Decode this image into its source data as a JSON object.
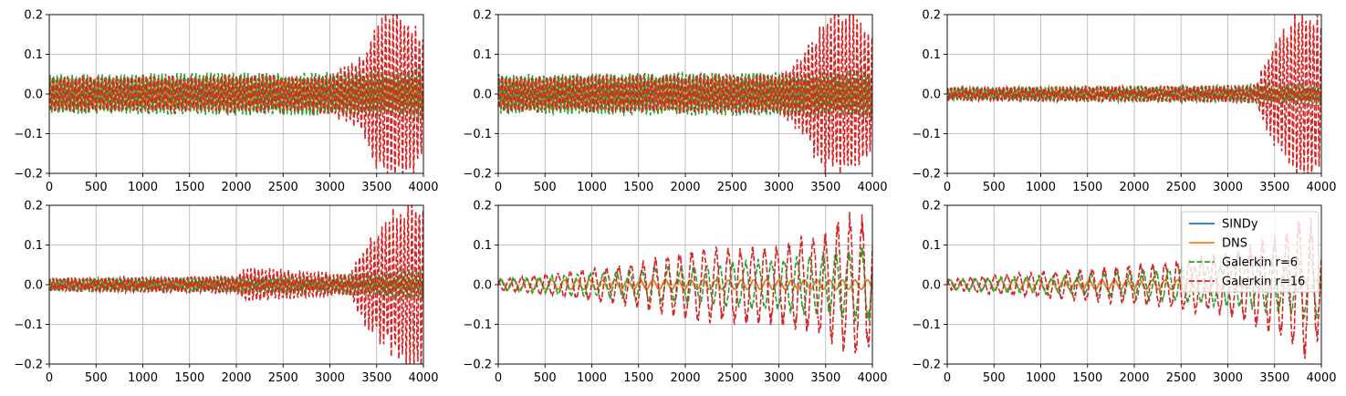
{
  "colors": {
    "SINDy": "#1f77b4",
    "DNS": "#ff7f0e",
    "Galerkin r=6": "#2ca02c",
    "Galerkin r=16": "#d62728",
    "grid": "#b0b0b0"
  },
  "legend": {
    "placement": "upper-right of bottom-right panel",
    "entries": [
      {
        "label": "SINDy",
        "style": "solid"
      },
      {
        "label": "DNS",
        "style": "solid"
      },
      {
        "label": "Galerkin r=6",
        "style": "dashed"
      },
      {
        "label": "Galerkin r=16",
        "style": "dashed"
      }
    ]
  },
  "chart_data": [
    {
      "type": "line",
      "panel": "top-left",
      "grid": true,
      "xlim": [
        0,
        4000
      ],
      "ylim": [
        -0.2,
        0.2
      ],
      "xticks": [
        "0",
        "500",
        "1000",
        "1500",
        "2000",
        "2500",
        "3000",
        "3500",
        "4000"
      ],
      "yticks": [
        "−0.2",
        "−0.1",
        "0.0",
        "0.1",
        "0.2"
      ],
      "series": [
        {
          "name": "SINDy",
          "style": "solid",
          "period": 40,
          "amplitude": [
            [
              0,
              0.04
            ],
            [
              4000,
              0.04
            ]
          ]
        },
        {
          "name": "DNS",
          "style": "solid",
          "period": 40,
          "amplitude": [
            [
              0,
              0.04
            ],
            [
              4000,
              0.04
            ]
          ]
        },
        {
          "name": "Galerkin r=6",
          "style": "dashed",
          "period": 40,
          "amplitude": [
            [
              0,
              0.045
            ],
            [
              3000,
              0.05
            ],
            [
              4000,
              0.06
            ]
          ]
        },
        {
          "name": "Galerkin r=16",
          "style": "dashed",
          "period": 40,
          "amplitude": [
            [
              0,
              0.04
            ],
            [
              3000,
              0.045
            ],
            [
              3300,
              0.08
            ],
            [
              3500,
              0.17
            ],
            [
              3600,
              0.2
            ],
            [
              3800,
              0.2
            ],
            [
              4000,
              0.15
            ]
          ]
        }
      ]
    },
    {
      "type": "line",
      "panel": "top-middle",
      "grid": true,
      "xlim": [
        0,
        4000
      ],
      "ylim": [
        -0.2,
        0.2
      ],
      "xticks": [
        "0",
        "500",
        "1000",
        "1500",
        "2000",
        "2500",
        "3000",
        "3500",
        "4000"
      ],
      "yticks": [
        "−0.2",
        "−0.1",
        "0.0",
        "0.1",
        "0.2"
      ],
      "series": [
        {
          "name": "SINDy",
          "style": "solid",
          "period": 40,
          "amplitude": [
            [
              0,
              0.04
            ],
            [
              4000,
              0.04
            ]
          ]
        },
        {
          "name": "DNS",
          "style": "solid",
          "period": 40,
          "amplitude": [
            [
              0,
              0.04
            ],
            [
              4000,
              0.04
            ]
          ]
        },
        {
          "name": "Galerkin r=6",
          "style": "dashed",
          "period": 40,
          "amplitude": [
            [
              0,
              0.045
            ],
            [
              3000,
              0.05
            ],
            [
              4000,
              0.06
            ]
          ]
        },
        {
          "name": "Galerkin r=16",
          "style": "dashed",
          "period": 40,
          "amplitude": [
            [
              0,
              0.04
            ],
            [
              3000,
              0.045
            ],
            [
              3200,
              0.08
            ],
            [
              3500,
              0.18
            ],
            [
              3700,
              0.2
            ],
            [
              4000,
              0.15
            ]
          ]
        }
      ]
    },
    {
      "type": "line",
      "panel": "top-right",
      "grid": true,
      "xlim": [
        0,
        4000
      ],
      "ylim": [
        -0.2,
        0.2
      ],
      "xticks": [
        "0",
        "500",
        "1000",
        "1500",
        "2000",
        "2500",
        "3000",
        "3500",
        "4000"
      ],
      "yticks": [
        "−0.2",
        "−0.1",
        "0.0",
        "0.1",
        "0.2"
      ],
      "series": [
        {
          "name": "SINDy",
          "style": "solid",
          "period": 40,
          "amplitude": [
            [
              0,
              0.012
            ],
            [
              4000,
              0.012
            ]
          ]
        },
        {
          "name": "DNS",
          "style": "solid",
          "period": 40,
          "amplitude": [
            [
              0,
              0.012
            ],
            [
              4000,
              0.012
            ]
          ]
        },
        {
          "name": "Galerkin r=6",
          "style": "dashed",
          "period": 40,
          "amplitude": [
            [
              0,
              0.015
            ],
            [
              3000,
              0.02
            ],
            [
              4000,
              0.03
            ]
          ]
        },
        {
          "name": "Galerkin r=16",
          "style": "dashed",
          "period": 40,
          "amplitude": [
            [
              0,
              0.015
            ],
            [
              3300,
              0.02
            ],
            [
              3400,
              0.08
            ],
            [
              3600,
              0.15
            ],
            [
              3800,
              0.2
            ],
            [
              4000,
              0.18
            ]
          ]
        }
      ]
    },
    {
      "type": "line",
      "panel": "bottom-left",
      "grid": true,
      "xlim": [
        0,
        4000
      ],
      "ylim": [
        -0.2,
        0.2
      ],
      "xticks": [
        "0",
        "500",
        "1000",
        "1500",
        "2000",
        "2500",
        "3000",
        "3500",
        "4000"
      ],
      "yticks": [
        "−0.2",
        "−0.1",
        "0.0",
        "0.1",
        "0.2"
      ],
      "series": [
        {
          "name": "SINDy",
          "style": "solid",
          "period": 40,
          "amplitude": [
            [
              0,
              0.012
            ],
            [
              4000,
              0.012
            ]
          ]
        },
        {
          "name": "DNS",
          "style": "solid",
          "period": 40,
          "amplitude": [
            [
              0,
              0.012
            ],
            [
              4000,
              0.012
            ]
          ]
        },
        {
          "name": "Galerkin r=6",
          "style": "dashed",
          "period": 40,
          "amplitude": [
            [
              0,
              0.015
            ],
            [
              3000,
              0.02
            ],
            [
              4000,
              0.04
            ]
          ]
        },
        {
          "name": "Galerkin r=16",
          "style": "dashed",
          "period": 40,
          "amplitude": [
            [
              0,
              0.015
            ],
            [
              2000,
              0.02
            ],
            [
              2100,
              0.04
            ],
            [
              3200,
              0.025
            ],
            [
              3400,
              0.1
            ],
            [
              3700,
              0.17
            ],
            [
              3900,
              0.2
            ],
            [
              4000,
              0.2
            ]
          ]
        }
      ]
    },
    {
      "type": "line",
      "panel": "bottom-middle",
      "grid": true,
      "xlim": [
        0,
        4000
      ],
      "ylim": [
        -0.2,
        0.2
      ],
      "xticks": [
        "0",
        "500",
        "1000",
        "1500",
        "2000",
        "2500",
        "3000",
        "3500",
        "4000"
      ],
      "yticks": [
        "−0.2",
        "−0.1",
        "0.0",
        "0.1",
        "0.2"
      ],
      "series": [
        {
          "name": "SINDy",
          "style": "solid",
          "period": 135,
          "amplitude": [
            [
              0,
              0.012
            ],
            [
              4000,
              0.012
            ]
          ]
        },
        {
          "name": "DNS",
          "style": "solid",
          "period": 135,
          "amplitude": [
            [
              0,
              0.012
            ],
            [
              4000,
              0.012
            ]
          ]
        },
        {
          "name": "Galerkin r=6",
          "style": "dashed",
          "period": 138,
          "amplitude": [
            [
              0,
              0.012
            ],
            [
              1500,
              0.035
            ],
            [
              2500,
              0.05
            ],
            [
              3500,
              0.07
            ],
            [
              4000,
              0.09
            ]
          ]
        },
        {
          "name": "Galerkin r=16",
          "style": "dashed",
          "period": 130,
          "amplitude": [
            [
              0,
              0.012
            ],
            [
              800,
              0.03
            ],
            [
              1500,
              0.05
            ],
            [
              2000,
              0.08
            ],
            [
              3000,
              0.09
            ],
            [
              3500,
              0.12
            ],
            [
              3800,
              0.17
            ],
            [
              4000,
              0.15
            ]
          ]
        }
      ]
    },
    {
      "type": "line",
      "panel": "bottom-right",
      "grid": true,
      "xlim": [
        0,
        4000
      ],
      "ylim": [
        -0.2,
        0.2
      ],
      "xticks": [
        "0",
        "500",
        "1000",
        "1500",
        "2000",
        "2500",
        "3000",
        "3500",
        "4000"
      ],
      "yticks": [
        "−0.2",
        "−0.1",
        "0.0",
        "0.1",
        "0.2"
      ],
      "series": [
        {
          "name": "SINDy",
          "style": "solid",
          "period": 135,
          "amplitude": [
            [
              0,
              0.012
            ],
            [
              4000,
              0.012
            ]
          ]
        },
        {
          "name": "DNS",
          "style": "solid",
          "period": 135,
          "amplitude": [
            [
              0,
              0.012
            ],
            [
              4000,
              0.012
            ]
          ]
        },
        {
          "name": "Galerkin r=6",
          "style": "dashed",
          "period": 138,
          "amplitude": [
            [
              0,
              0.012
            ],
            [
              1500,
              0.025
            ],
            [
              2500,
              0.04
            ],
            [
              3500,
              0.06
            ],
            [
              4000,
              0.08
            ]
          ]
        },
        {
          "name": "Galerkin r=16",
          "style": "dashed",
          "period": 130,
          "amplitude": [
            [
              0,
              0.012
            ],
            [
              1000,
              0.03
            ],
            [
              2000,
              0.045
            ],
            [
              3000,
              0.07
            ],
            [
              3600,
              0.12
            ],
            [
              3800,
              0.17
            ],
            [
              4000,
              0.12
            ]
          ]
        }
      ]
    }
  ]
}
